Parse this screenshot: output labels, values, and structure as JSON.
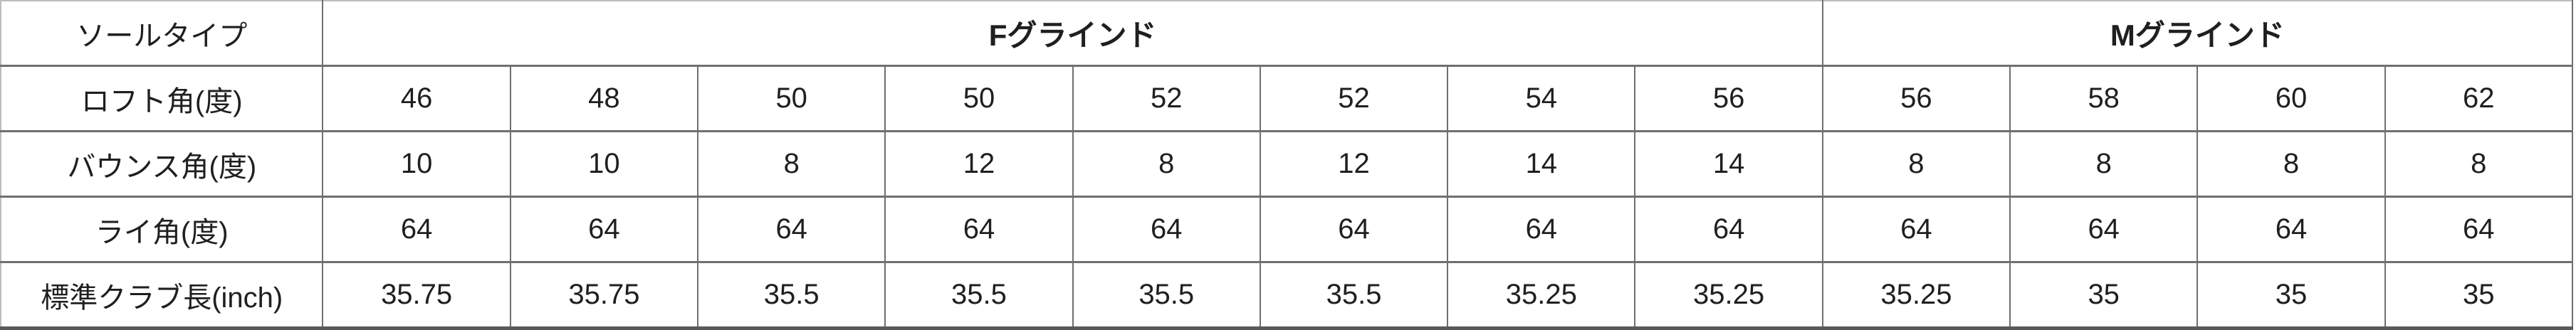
{
  "table": {
    "corner_label": "ソールタイプ",
    "groups": [
      {
        "label": "Fグラインド",
        "span": 8
      },
      {
        "label": "Mグラインド",
        "span": 4
      }
    ],
    "rows": [
      {
        "label": "ロフト角(度)",
        "values": [
          "46",
          "48",
          "50",
          "50",
          "52",
          "52",
          "54",
          "56",
          "56",
          "58",
          "60",
          "62"
        ]
      },
      {
        "label": "バウンス角(度)",
        "values": [
          "10",
          "10",
          "8",
          "12",
          "8",
          "12",
          "14",
          "14",
          "8",
          "8",
          "8",
          "8"
        ]
      },
      {
        "label": "ライ角(度)",
        "values": [
          "64",
          "64",
          "64",
          "64",
          "64",
          "64",
          "64",
          "64",
          "64",
          "64",
          "64",
          "64"
        ]
      },
      {
        "label": "標準クラブ長(inch)",
        "values": [
          "35.75",
          "35.75",
          "35.5",
          "35.5",
          "35.5",
          "35.5",
          "35.25",
          "35.25",
          "35.25",
          "35",
          "35",
          "35"
        ]
      }
    ],
    "colors": {
      "border": "#6f6f6f",
      "outer_bottom_border": "#595959",
      "text": "#1f1f1f",
      "background": "#ffffff"
    }
  }
}
